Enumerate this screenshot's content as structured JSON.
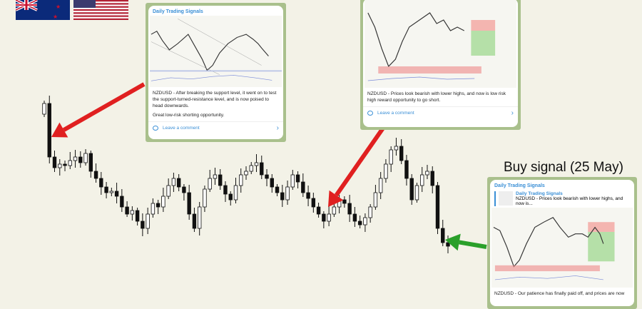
{
  "chart_data": {
    "type": "candlestick",
    "title": "",
    "closes": [
      255,
      180,
      165,
      170,
      168,
      175,
      180,
      172,
      185,
      160,
      150,
      138,
      130,
      132,
      125,
      110,
      100,
      105,
      90,
      80,
      100,
      115,
      110,
      125,
      140,
      150,
      138,
      130,
      100,
      80,
      110,
      135,
      150,
      155,
      140,
      128,
      120,
      140,
      155,
      160,
      168,
      172,
      155,
      150,
      138,
      130,
      120,
      138,
      155,
      145,
      130,
      122,
      110,
      100,
      90,
      100,
      110,
      120,
      115,
      100,
      90,
      85,
      95,
      110,
      130,
      150,
      170,
      190,
      195,
      175,
      150,
      120,
      140,
      155,
      160,
      140,
      80,
      60,
      55
    ],
    "first_open": 240,
    "colors": {
      "bull": "#ffffff",
      "bear": "#111111",
      "red_arrow": "#e02020",
      "green_arrow": "#2aa02a"
    }
  },
  "flags": [
    "new-zealand-flag",
    "united-states-flag"
  ],
  "annotations": {
    "buy_signal": "Buy signal (25 May)"
  },
  "cards": [
    {
      "channel": "Daily Trading Signals",
      "message": "NZDUSD - After breaking the support level, it went on to test the support-turned-resistance level, and is now poised to head downwards.",
      "message2": "Great low-risk shorting opportunity.",
      "comment": "Leave a comment"
    },
    {
      "message": "NZDUSD - Prices look bearish with lower highs, and now is low risk high reward opportunity to go short.",
      "comment": "Leave a comment"
    },
    {
      "channel": "Daily Trading Signals",
      "reply_title": "Daily Trading Signals",
      "reply_text": "NZDUSD - Prices look bearish with lower highs, and now is...",
      "message": "NZDUSD - Our patience has finally paid off, and prices are now"
    }
  ]
}
